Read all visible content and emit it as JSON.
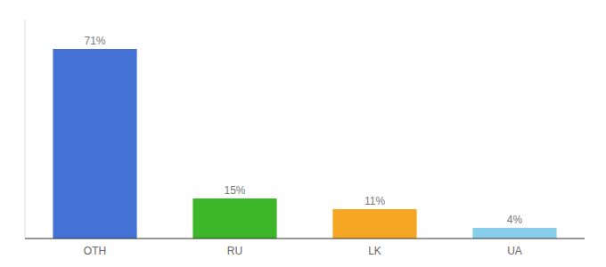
{
  "chart_data": {
    "type": "bar",
    "categories": [
      "OTH",
      "RU",
      "LK",
      "UA"
    ],
    "values": [
      71,
      15,
      11,
      4
    ],
    "value_labels": [
      "71%",
      "15%",
      "11%",
      "4%"
    ],
    "colors": [
      "#4472D4",
      "#3CB528",
      "#F5A623",
      "#87CEEB"
    ],
    "ylim": [
      0,
      82
    ],
    "data_labels": true,
    "tick_labels": "x",
    "grid": false
  }
}
